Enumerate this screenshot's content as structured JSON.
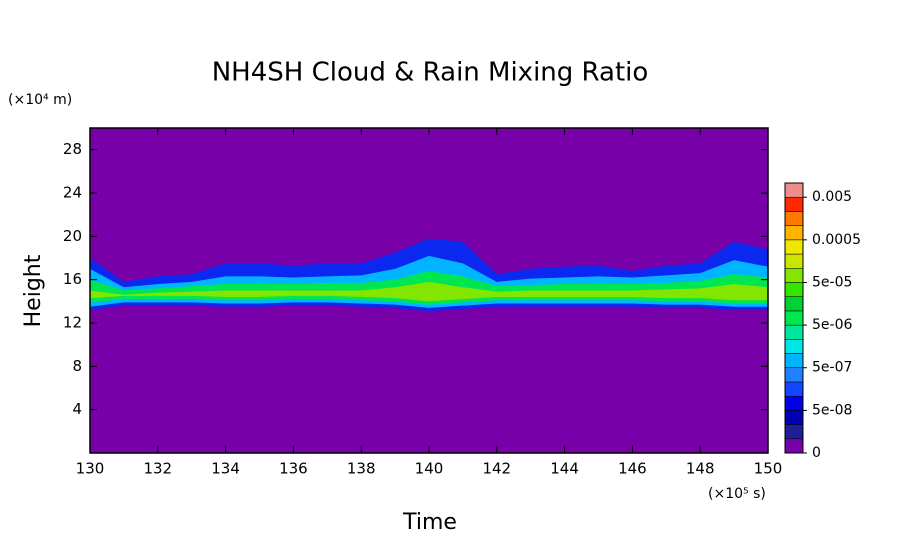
{
  "chart_data": {
    "type": "contour",
    "title": "NH4SH Cloud & Rain Mixing Ratio",
    "xlabel": "Time",
    "ylabel": "Height",
    "x_scale": "(×10⁵ s)",
    "y_scale": "(×10⁴ m)",
    "xlim": [
      130,
      150
    ],
    "xticks": [
      130,
      132,
      134,
      136,
      138,
      140,
      142,
      144,
      146,
      148,
      150
    ],
    "ylim": [
      0,
      30
    ],
    "yticks": [
      4,
      8,
      12,
      16,
      20,
      24,
      28
    ],
    "background": "#7800a8",
    "x": [
      130,
      131,
      132,
      133,
      134,
      135,
      136,
      137,
      138,
      139,
      140,
      141,
      142,
      143,
      144,
      145,
      146,
      147,
      148,
      149,
      150
    ],
    "contours": [
      {
        "color": "#0a28f0",
        "upper": [
          18,
          15.8,
          16.3,
          16.5,
          17.5,
          17.5,
          17.3,
          17.5,
          17.5,
          18.5,
          19.8,
          19.5,
          16.5,
          17,
          17.2,
          17.3,
          16.8,
          17.3,
          17.5,
          19.5,
          18.8
        ],
        "lower": [
          13.2,
          13.6,
          13.6,
          13.6,
          13.5,
          13.5,
          13.6,
          13.6,
          13.5,
          13.4,
          13.1,
          13.3,
          13.5,
          13.5,
          13.5,
          13.5,
          13.5,
          13.4,
          13.4,
          13.2,
          13.2
        ]
      },
      {
        "color": "#00b4ff",
        "upper": [
          17,
          15.3,
          15.6,
          15.8,
          16.3,
          16.3,
          16.2,
          16.3,
          16.4,
          17,
          18.2,
          17.5,
          15.8,
          16.1,
          16.2,
          16.3,
          16.2,
          16.4,
          16.6,
          17.8,
          17.2
        ],
        "lower": [
          13.5,
          13.9,
          13.9,
          13.9,
          13.8,
          13.8,
          13.9,
          13.9,
          13.8,
          13.7,
          13.4,
          13.6,
          13.8,
          13.8,
          13.8,
          13.8,
          13.8,
          13.7,
          13.7,
          13.5,
          13.5
        ]
      },
      {
        "color": "#00e650",
        "upper": [
          16,
          15,
          15.2,
          15.4,
          15.6,
          15.6,
          15.6,
          15.7,
          15.7,
          16,
          16.8,
          16.3,
          15.4,
          15.5,
          15.6,
          15.6,
          15.6,
          15.7,
          15.9,
          16.5,
          16.2
        ],
        "lower": [
          13.9,
          14.2,
          14.2,
          14.2,
          14.1,
          14.1,
          14.2,
          14.2,
          14.1,
          14,
          13.7,
          13.9,
          14.1,
          14.1,
          14.1,
          14.1,
          14.1,
          14,
          14,
          13.8,
          13.8
        ]
      },
      {
        "color": "#82e600",
        "upper": [
          15,
          14.6,
          14.8,
          14.9,
          15,
          15,
          15,
          15,
          15,
          15.3,
          15.8,
          15.3,
          14.9,
          15,
          15,
          15,
          15,
          15.1,
          15.2,
          15.6,
          15.3
        ],
        "lower": [
          14.3,
          14.5,
          14.5,
          14.5,
          14.4,
          14.4,
          14.5,
          14.5,
          14.4,
          14.3,
          14,
          14.2,
          14.4,
          14.4,
          14.4,
          14.4,
          14.4,
          14.3,
          14.3,
          14.1,
          14.1
        ]
      }
    ],
    "colorbar": {
      "levels": [
        0,
        1e-08,
        2e-08,
        5e-08,
        1e-07,
        2e-07,
        5e-07,
        1e-06,
        2e-06,
        5e-06,
        1e-05,
        2e-05,
        5e-05,
        0.0001,
        0.0002,
        0.0005,
        0.001,
        0.002,
        0.005,
        0.01
      ],
      "colors": [
        "#7800a8",
        "#1e1e96",
        "#0000b4",
        "#0000e6",
        "#1446ff",
        "#1e82ff",
        "#00b4ff",
        "#00e6e6",
        "#00e6a0",
        "#00e650",
        "#00d232",
        "#32e600",
        "#82e600",
        "#c8e600",
        "#f0e600",
        "#ffb400",
        "#ff7800",
        "#ff2800",
        "#f08c8c"
      ],
      "ticks": [
        0,
        {
          "value": 5e-08,
          "label": "5e-08"
        },
        {
          "value": 5e-07,
          "label": "5e-07"
        },
        {
          "value": 5e-06,
          "label": "5e-06"
        },
        {
          "value": 5e-05,
          "label": "5e-05"
        },
        0.0005,
        0.005
      ]
    }
  }
}
